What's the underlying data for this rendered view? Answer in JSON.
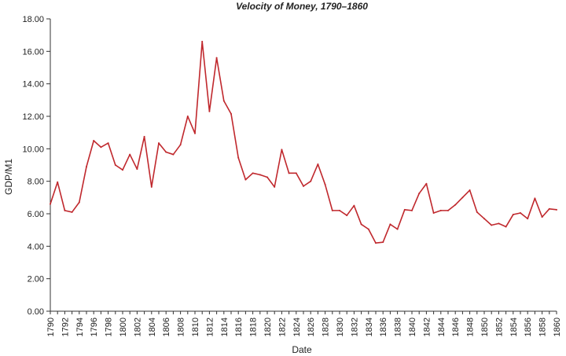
{
  "chart_data": {
    "type": "line",
    "title": "Velocity of Money, 1790–1860",
    "xlabel": "Date",
    "ylabel": "GDP/M1",
    "ylim": [
      0,
      18
    ],
    "y_ticks": [
      "0.00",
      "2.00",
      "4.00",
      "6.00",
      "8.00",
      "10.00",
      "12.00",
      "14.00",
      "16.00",
      "18.00"
    ],
    "x_tick_labels": [
      "1790",
      "1792",
      "1794",
      "1796",
      "1798",
      "1800",
      "1802",
      "1804",
      "1806",
      "1808",
      "1810",
      "1812",
      "1814",
      "1816",
      "1818",
      "1820",
      "1822",
      "1824",
      "1826",
      "1828",
      "1830",
      "1832",
      "1834",
      "1836",
      "1838",
      "1840",
      "1842",
      "1844",
      "1846",
      "1848",
      "1850",
      "1852",
      "1854",
      "1856",
      "1858",
      "1860"
    ],
    "grid": false,
    "line_color": "#c0282d",
    "series": [
      {
        "x": [
          1790,
          1791,
          1792,
          1793,
          1794,
          1795,
          1796,
          1797,
          1798,
          1799,
          1800,
          1801,
          1802,
          1803,
          1804,
          1805,
          1806,
          1807,
          1808,
          1809,
          1810,
          1811,
          1812,
          1813,
          1814,
          1815,
          1816,
          1817,
          1818,
          1819,
          1820,
          1821,
          1822,
          1823,
          1824,
          1825,
          1826,
          1827,
          1828,
          1829,
          1830,
          1831,
          1832,
          1833,
          1834,
          1835,
          1836,
          1837,
          1838,
          1839,
          1840,
          1841,
          1842,
          1843,
          1844,
          1845,
          1846,
          1847,
          1848,
          1849,
          1850,
          1851,
          1852,
          1853,
          1854,
          1855,
          1856,
          1857,
          1858,
          1859,
          1860
        ],
        "values": [
          6.6,
          7.95,
          6.2,
          6.1,
          6.7,
          8.9,
          10.5,
          10.1,
          10.35,
          9.0,
          8.7,
          9.65,
          8.75,
          10.75,
          7.65,
          10.35,
          9.8,
          9.65,
          10.25,
          12.0,
          10.95,
          16.6,
          12.3,
          15.6,
          12.95,
          12.15,
          9.45,
          8.1,
          8.5,
          8.4,
          8.25,
          7.65,
          9.95,
          8.5,
          8.5,
          7.7,
          8.0,
          9.05,
          7.8,
          6.2,
          6.2,
          5.9,
          6.5,
          5.35,
          5.05,
          4.2,
          4.25,
          5.35,
          5.05,
          6.25,
          6.2,
          7.25,
          7.85,
          6.05,
          6.2,
          6.2,
          6.55,
          7.0,
          7.45,
          6.1,
          5.7,
          5.3,
          5.4,
          5.2,
          5.95,
          6.05,
          5.7,
          6.95,
          5.8,
          6.3,
          6.25
        ]
      }
    ]
  }
}
